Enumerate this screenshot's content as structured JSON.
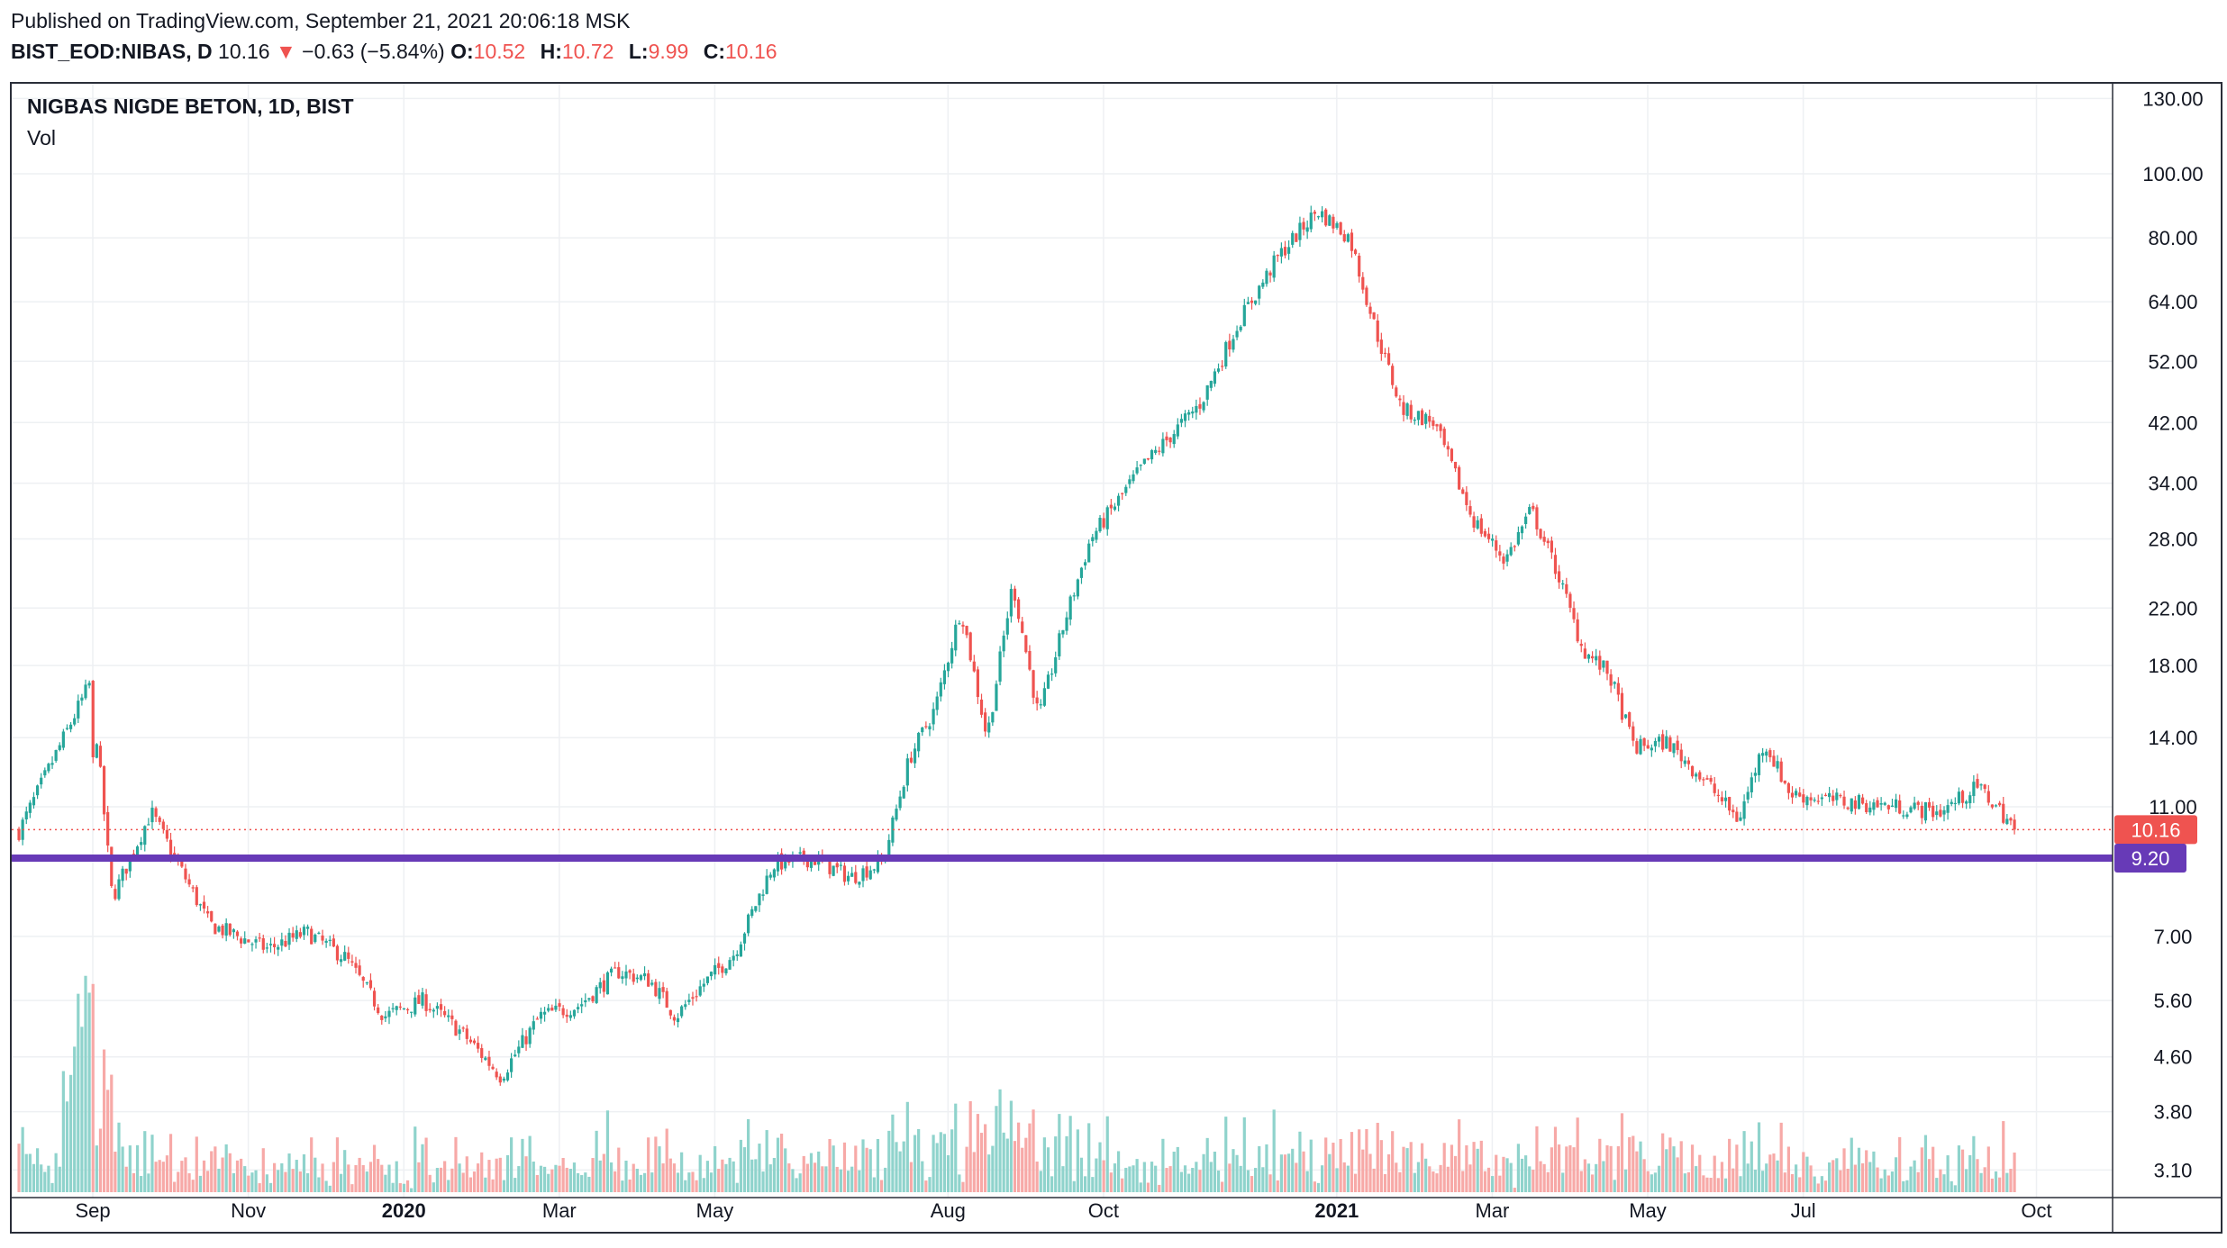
{
  "header": {
    "published": "Published on TradingView.com, September 21, 2021 20:06:18 MSK",
    "symbol": "BIST_EOD:NIBAS, D",
    "last": "10.16",
    "change_arrow": "▼",
    "change": "−0.63 (−5.84%)",
    "open_label": "O:",
    "open": "10.52",
    "high_label": "H:",
    "high": "10.72",
    "low_label": "L:",
    "low": "9.99",
    "close_label": "C:",
    "close": "10.16"
  },
  "legend": {
    "title": "NIGBAS NIGDE BETON, 1D, BIST",
    "volume": "Vol"
  },
  "colors": {
    "up": "#26a69a",
    "down": "#ef5350",
    "vol_up": "#8fd3cc",
    "vol_down": "#f7a9a7",
    "support_line": "#673ab7",
    "grid": "#eef0f3",
    "text": "#131722"
  },
  "chart_data": {
    "type": "candlestick",
    "scale": "log",
    "y_ticks": [
      "130.00",
      "100.00",
      "80.00",
      "64.00",
      "52.00",
      "42.00",
      "34.00",
      "28.00",
      "22.00",
      "18.00",
      "14.00",
      "11.00",
      "7.00",
      "5.60",
      "4.60",
      "3.80",
      "3.10"
    ],
    "x_ticks": [
      "Sep",
      "Nov",
      "2020",
      "Mar",
      "May",
      "Aug",
      "Oct",
      "2021",
      "Mar",
      "May",
      "Jul",
      "Oct"
    ],
    "bold_x_ticks": [
      "2020",
      "2021"
    ],
    "last_price": 10.16,
    "last_price_label": "10.16",
    "horizontal_line": 9.2,
    "horizontal_line_label": "9.20",
    "price_path": [
      [
        "Aug 2019",
        10.1
      ],
      [
        "Aug 2019",
        17.1
      ],
      [
        "Sep 2019",
        8.0
      ],
      [
        "Sep 2019",
        10.8
      ],
      [
        "Oct 2019",
        7.3
      ],
      [
        "Nov 2019",
        6.7
      ],
      [
        "Nov 2019",
        7.1
      ],
      [
        "Dec 2019",
        6.5
      ],
      [
        "Dec 2019",
        5.3
      ],
      [
        "Jan 2020",
        5.6
      ],
      [
        "Jan 2020",
        5.0
      ],
      [
        "Feb 2020",
        4.3
      ],
      [
        "Feb 2020",
        5.3
      ],
      [
        "Mar 2020",
        5.5
      ],
      [
        "Mar 2020",
        6.2
      ],
      [
        "Apr 2020",
        6.0
      ],
      [
        "Apr 2020",
        5.3
      ],
      [
        "Apr 2020",
        5.9
      ],
      [
        "May 2020",
        6.6
      ],
      [
        "May 2020",
        9.0
      ],
      [
        "Jun 2020",
        9.2
      ],
      [
        "Jun 2020",
        8.6
      ],
      [
        "Jul 2020",
        9.1
      ],
      [
        "Jul 2020",
        13.0
      ],
      [
        "Jul 2020",
        15.5
      ],
      [
        "Aug 2020",
        22.0
      ],
      [
        "Aug 2020",
        14.0
      ],
      [
        "Aug 2020",
        24.0
      ],
      [
        "Sep 2020",
        15.0
      ],
      [
        "Sep 2020",
        21.0
      ],
      [
        "Sep 2020",
        28.0
      ],
      [
        "Oct 2020",
        36.0
      ],
      [
        "Nov 2020",
        45.0
      ],
      [
        "Nov 2020",
        60.0
      ],
      [
        "Dec 2020",
        75.0
      ],
      [
        "Dec 2020",
        88.0
      ],
      [
        "Jan 2021",
        80.0
      ],
      [
        "Jan 2021",
        58.0
      ],
      [
        "Jan 2021",
        44.0
      ],
      [
        "Feb 2021",
        42.0
      ],
      [
        "Feb 2021",
        30.0
      ],
      [
        "Mar 2021",
        26.0
      ],
      [
        "Mar 2021",
        31.0
      ],
      [
        "Mar 2021",
        25.0
      ],
      [
        "Apr 2021",
        19.0
      ],
      [
        "Apr 2021",
        17.5
      ],
      [
        "Apr 2021",
        13.5
      ],
      [
        "May 2021",
        13.8
      ],
      [
        "May 2021",
        12.0
      ],
      [
        "Jun 2021",
        10.5
      ],
      [
        "Jun 2021",
        13.8
      ],
      [
        "Jun 2021",
        11.5
      ],
      [
        "Jul 2021",
        11.2
      ],
      [
        "Aug 2021",
        11.0
      ],
      [
        "Aug 2021",
        10.8
      ],
      [
        "Sep 2021",
        11.8
      ],
      [
        "Sep 2021",
        10.16
      ]
    ]
  }
}
